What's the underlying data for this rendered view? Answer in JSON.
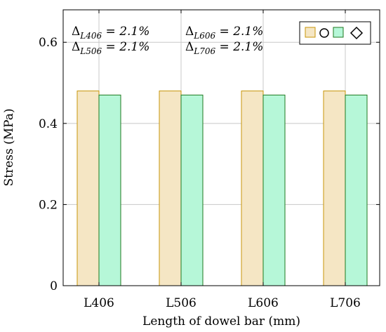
{
  "chart_data": {
    "type": "bar",
    "categories": [
      "L406",
      "L506",
      "L606",
      "L706"
    ],
    "series": [
      {
        "name": "",
        "legend_icon": "circle-icon",
        "values": [
          0.48,
          0.48,
          0.48,
          0.48
        ],
        "fill": "#f5e6c4",
        "stroke": "#c8960a"
      },
      {
        "name": "",
        "legend_icon": "diamond-icon",
        "values": [
          0.47,
          0.47,
          0.47,
          0.47
        ],
        "fill": "#b6f7d8",
        "stroke": "#1f7a1f"
      }
    ],
    "title": "",
    "xlabel": "Length of dowel bar (mm)",
    "ylabel": "Stress (MPa)",
    "ylim": [
      0,
      0.68
    ],
    "yticks": [
      0,
      0.2,
      0.4,
      0.6
    ],
    "ytick_labels": [
      "0",
      "0.2",
      "0.4",
      "0.6"
    ],
    "grid": true,
    "legend_position": "top-right",
    "annotations": [
      {
        "symbol": "Δ",
        "subscript": "L406",
        "text": " = 2.1%"
      },
      {
        "symbol": "Δ",
        "subscript": "L506",
        "text": " = 2.1%"
      },
      {
        "symbol": "Δ",
        "subscript": "L606",
        "text": " = 2.1%"
      },
      {
        "symbol": "Δ",
        "subscript": "L706",
        "text": " = 2.1%"
      }
    ]
  }
}
